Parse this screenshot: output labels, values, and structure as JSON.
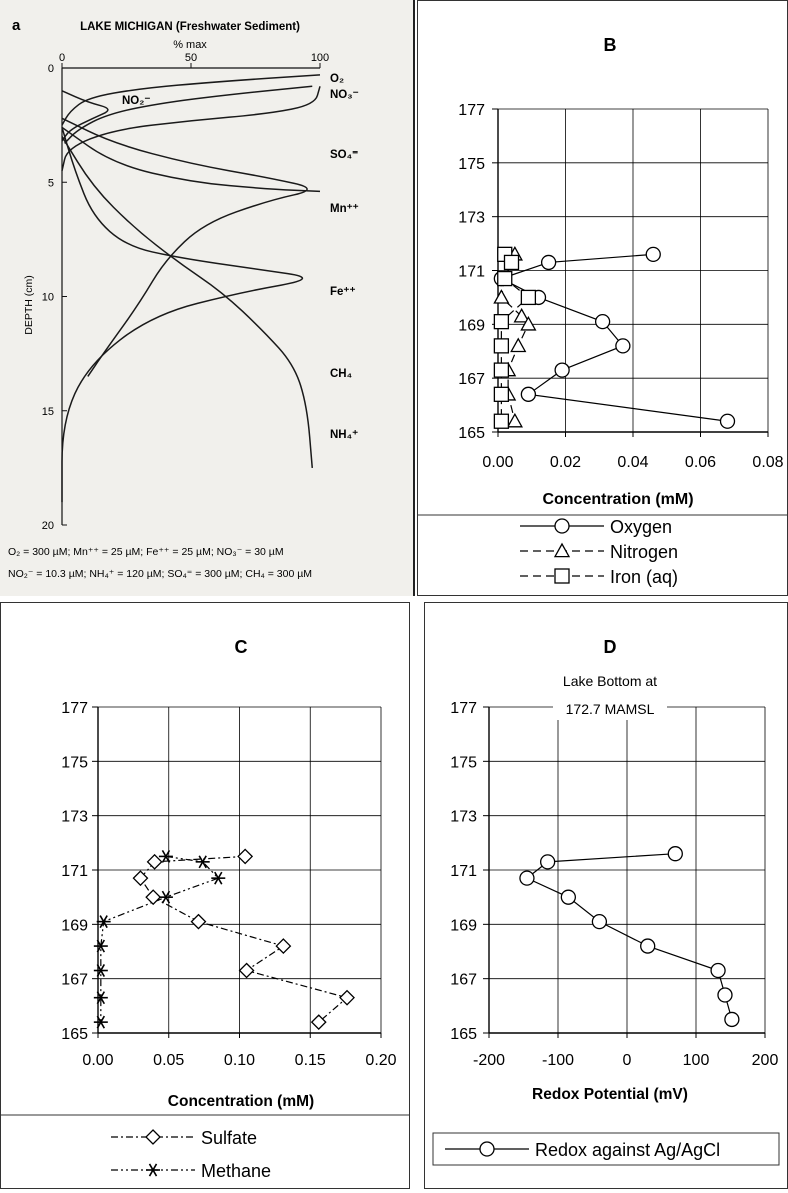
{
  "panels": {
    "a": {
      "letter": "a",
      "title": "LAKE MICHIGAN (Freshwater Sediment)",
      "xlabel": "% max",
      "ylabel": "DEPTH (cm)",
      "footnote_line1": "O₂ = 300 µM; Mn⁺⁺ = 25 µM; Fe⁺⁺ = 25 µM; NO₃⁻ = 30 µM",
      "footnote_line2": "NO₂⁻ = 10.3 µM; NH₄⁺ = 120 µM; SO₄⁼ = 300 µM; CH₄ = 300 µM"
    },
    "b": {
      "letter": "B"
    },
    "c": {
      "letter": "C"
    },
    "d": {
      "letter": "D"
    }
  },
  "chart_data": [
    {
      "id": "a",
      "type": "line",
      "title": "LAKE MICHIGAN (Freshwater Sediment)",
      "xlabel": "% max",
      "ylabel": "DEPTH (cm)",
      "xlim": [
        0,
        100
      ],
      "ylim": [
        20,
        0
      ],
      "xticks": [
        0,
        50,
        100
      ],
      "yticks": [
        0,
        5,
        10,
        15,
        20
      ],
      "series": [
        {
          "name": "O₂",
          "points": [
            [
              100,
              0.3
            ],
            [
              60,
              0.6
            ],
            [
              30,
              0.9
            ],
            [
              10,
              1.3
            ],
            [
              3,
              1.9
            ],
            [
              0,
              2.5
            ]
          ]
        },
        {
          "name": "NO₃⁻",
          "points": [
            [
              97,
              0.8
            ],
            [
              70,
              1.1
            ],
            [
              40,
              1.5
            ],
            [
              18,
              2.0
            ],
            [
              6,
              2.7
            ],
            [
              1,
              3.3
            ]
          ]
        },
        {
          "name": "NO₂⁻",
          "points": [
            [
              0,
              1.0
            ],
            [
              10,
              1.5
            ],
            [
              20,
              1.8
            ],
            [
              12,
              2.2
            ],
            [
              3,
              2.7
            ],
            [
              0,
              3.2
            ]
          ]
        },
        {
          "name": "SO₄⁼",
          "points": [
            [
              100,
              0.8
            ],
            [
              98,
              1.6
            ],
            [
              80,
              2.0
            ],
            [
              50,
              2.3
            ],
            [
              20,
              2.7
            ],
            [
              2,
              3.5
            ],
            [
              0,
              4.5
            ]
          ]
        },
        {
          "name": "Mn⁺⁺",
          "points": [
            [
              0,
              2.2
            ],
            [
              20,
              3.3
            ],
            [
              50,
              4.2
            ],
            [
              80,
              4.8
            ],
            [
              100,
              5.3
            ],
            [
              80,
              5.8
            ],
            [
              55,
              6.8
            ],
            [
              40,
              8.4
            ],
            [
              30,
              10.3
            ],
            [
              16,
              12.5
            ],
            [
              10,
              13.5
            ]
          ]
        },
        {
          "name": "Fe⁺⁺",
          "points": [
            [
              0,
              2.6
            ],
            [
              5,
              4.5
            ],
            [
              12,
              6.5
            ],
            [
              25,
              7.8
            ],
            [
              45,
              8.3
            ],
            [
              75,
              8.8
            ],
            [
              100,
              9.2
            ],
            [
              70,
              9.8
            ],
            [
              35,
              10.8
            ],
            [
              10,
              13
            ],
            [
              0,
              15.5
            ],
            [
              0,
              19
            ]
          ]
        },
        {
          "name": "CH₄",
          "points": [
            [
              0,
              2.6
            ],
            [
              20,
              4.2
            ],
            [
              50,
              5.0
            ],
            [
              80,
              5.3
            ],
            [
              100,
              5.4
            ]
          ]
        },
        {
          "name": "NH₄⁺",
          "points": [
            [
              0,
              3.0
            ],
            [
              12,
              5.2
            ],
            [
              28,
              7.0
            ],
            [
              45,
              8.5
            ],
            [
              62,
              9.8
            ],
            [
              78,
              11.5
            ],
            [
              90,
              13
            ],
            [
              95,
              14.8
            ],
            [
              97,
              17.5
            ]
          ]
        }
      ],
      "labels": [
        "O₂",
        "NO₃⁻",
        "NO₂⁻",
        "SO₄⁼",
        "Mn⁺⁺",
        "Fe⁺⁺",
        "CH₄",
        "NH₄⁺"
      ]
    },
    {
      "id": "b",
      "type": "line",
      "title": "B",
      "xlabel": "Concentration (mM)",
      "ylabel": "",
      "xlim": [
        0,
        0.08
      ],
      "ylim": [
        165,
        177
      ],
      "xticks": [
        "0.00",
        "0.02",
        "0.04",
        "0.06",
        "0.08"
      ],
      "yticks": [
        "165",
        "167",
        "169",
        "171",
        "173",
        "175",
        "177"
      ],
      "grid": true,
      "legend": "bottom",
      "series": [
        {
          "name": "Oxygen",
          "marker": "circle",
          "dash": "solid",
          "points": [
            [
              0.046,
              171.6
            ],
            [
              0.015,
              171.3
            ],
            [
              0.001,
              170.7
            ],
            [
              0.012,
              170.0
            ],
            [
              0.031,
              169.1
            ],
            [
              0.037,
              168.2
            ],
            [
              0.019,
              167.3
            ],
            [
              0.009,
              166.4
            ],
            [
              0.068,
              165.4
            ]
          ]
        },
        {
          "name": "Nitrogen",
          "marker": "triangle",
          "dash": "dash",
          "points": [
            [
              0.005,
              171.6
            ],
            [
              0.002,
              170.7
            ],
            [
              0.001,
              170.0
            ],
            [
              0.007,
              169.3
            ],
            [
              0.009,
              169.0
            ],
            [
              0.006,
              168.2
            ],
            [
              0.003,
              167.3
            ],
            [
              0.003,
              166.4
            ],
            [
              0.005,
              165.4
            ]
          ]
        },
        {
          "name": "Iron (aq)",
          "marker": "square",
          "dash": "dash",
          "points": [
            [
              0.002,
              171.6
            ],
            [
              0.004,
              171.3
            ],
            [
              0.002,
              170.7
            ],
            [
              0.009,
              170.0
            ],
            [
              0.001,
              169.1
            ],
            [
              0.001,
              168.2
            ],
            [
              0.001,
              167.3
            ],
            [
              0.001,
              166.4
            ],
            [
              0.001,
              165.4
            ]
          ]
        }
      ]
    },
    {
      "id": "c",
      "type": "line",
      "title": "C",
      "xlabel": "Concentration (mM)",
      "ylabel": "",
      "xlim": [
        0,
        0.2
      ],
      "ylim": [
        165,
        177
      ],
      "xticks": [
        "0.00",
        "0.05",
        "0.10",
        "0.15",
        "0.20"
      ],
      "yticks": [
        "165",
        "167",
        "169",
        "171",
        "173",
        "175",
        "177"
      ],
      "grid": true,
      "legend": "bottom",
      "series": [
        {
          "name": "Sulfate",
          "marker": "diamond",
          "dash": "dashdot",
          "points": [
            [
              0.104,
              171.5
            ],
            [
              0.04,
              171.3
            ],
            [
              0.03,
              170.7
            ],
            [
              0.039,
              170.0
            ],
            [
              0.071,
              169.1
            ],
            [
              0.131,
              168.2
            ],
            [
              0.105,
              167.3
            ],
            [
              0.176,
              166.3
            ],
            [
              0.156,
              165.4
            ]
          ]
        },
        {
          "name": "Methane",
          "marker": "asterisk",
          "dash": "dashdotdot",
          "points": [
            [
              0.048,
              171.5
            ],
            [
              0.074,
              171.3
            ],
            [
              0.085,
              170.7
            ],
            [
              0.048,
              170.0
            ],
            [
              0.004,
              169.1
            ],
            [
              0.002,
              168.2
            ],
            [
              0.002,
              167.3
            ],
            [
              0.002,
              166.3
            ],
            [
              0.002,
              165.4
            ]
          ]
        }
      ]
    },
    {
      "id": "d",
      "type": "line",
      "title": "D",
      "subtitle_line1": "Lake Bottom at",
      "subtitle_line2": "172.7 MAMSL",
      "xlabel": "Redox Potential (mV)",
      "ylabel": "",
      "xlim": [
        -200,
        200
      ],
      "ylim": [
        165,
        177
      ],
      "xticks": [
        "-200",
        "-100",
        "0",
        "100",
        "200"
      ],
      "yticks": [
        "165",
        "167",
        "169",
        "171",
        "173",
        "175",
        "177"
      ],
      "grid": true,
      "legend": "bottom",
      "series": [
        {
          "name": "Redox against Ag/AgCl",
          "marker": "circle",
          "dash": "solid",
          "points": [
            [
              70,
              171.6
            ],
            [
              -115,
              171.3
            ],
            [
              -145,
              170.7
            ],
            [
              -85,
              170.0
            ],
            [
              -40,
              169.1
            ],
            [
              30,
              168.2
            ],
            [
              132,
              167.3
            ],
            [
              142,
              166.4
            ],
            [
              152,
              165.5
            ]
          ]
        }
      ]
    }
  ]
}
